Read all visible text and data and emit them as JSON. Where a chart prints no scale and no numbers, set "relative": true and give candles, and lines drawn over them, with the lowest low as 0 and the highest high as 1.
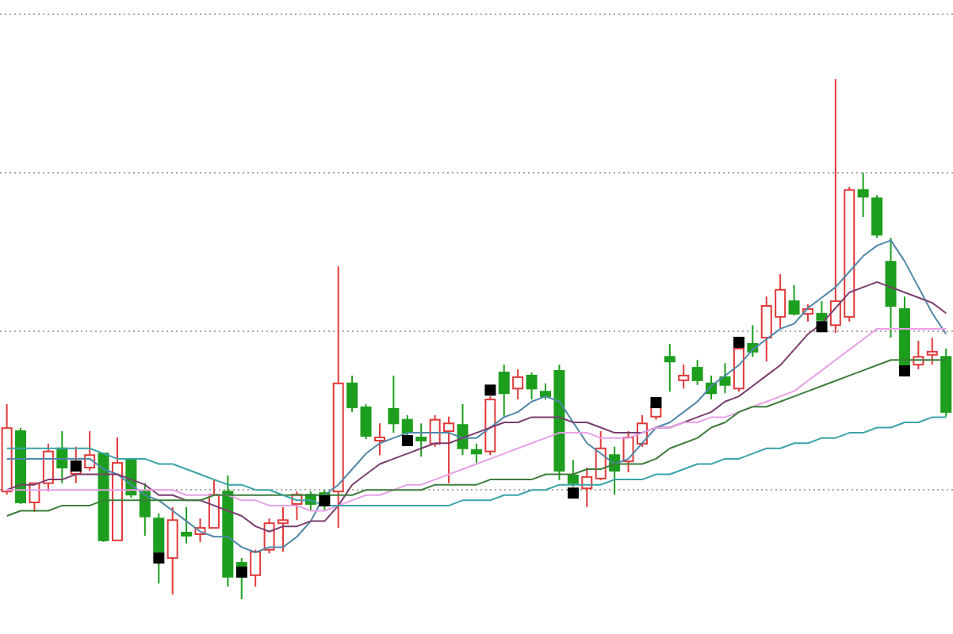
{
  "chart_data": {
    "type": "candlestick",
    "relative": true,
    "grid": "y",
    "categories": [
      null,
      null,
      null,
      null,
      null,
      null,
      null,
      null,
      null,
      null,
      null,
      null,
      null,
      null,
      null,
      null,
      null,
      null,
      null,
      null,
      null,
      null,
      null,
      null,
      null,
      null,
      null,
      null,
      null,
      null,
      null,
      null,
      null,
      null,
      null,
      null,
      null,
      null,
      null,
      null,
      null,
      null,
      null,
      null,
      null,
      null,
      null,
      null,
      null,
      null,
      null,
      null,
      null,
      null,
      null,
      null,
      null,
      null,
      null,
      null,
      null,
      null,
      null,
      null,
      null,
      null,
      null,
      null,
      null
    ],
    "ohlc": [
      [
        0.207,
        0.375,
        0.201,
        0.329
      ],
      [
        0.323,
        0.329,
        0.183,
        0.186
      ],
      [
        0.186,
        0.223,
        0.168,
        0.223
      ],
      [
        0.223,
        0.299,
        0.207,
        0.284
      ],
      [
        0.29,
        0.323,
        0.223,
        0.253
      ],
      [
        0.241,
        0.293,
        0.223,
        0.247
      ],
      [
        0.253,
        0.323,
        0.247,
        0.277
      ],
      [
        0.28,
        0.28,
        0.11,
        0.113
      ],
      [
        0.113,
        0.311,
        0.113,
        0.262
      ],
      [
        0.268,
        0.271,
        0.195,
        0.201
      ],
      [
        0.207,
        0.223,
        0.122,
        0.159
      ],
      [
        0.155,
        0.165,
        0.03,
        0.091
      ],
      [
        0.079,
        0.177,
        0.009,
        0.152
      ],
      [
        0.128,
        0.177,
        0.107,
        0.122
      ],
      [
        0.125,
        0.155,
        0.11,
        0.137
      ],
      [
        0.137,
        0.229,
        0.137,
        0.201
      ],
      [
        0.207,
        0.238,
        0.024,
        0.043
      ],
      [
        0.07,
        0.079,
        0,
        0.064
      ],
      [
        0.046,
        0.095,
        0.024,
        0.091
      ],
      [
        0.095,
        0.155,
        0.088,
        0.146
      ],
      [
        0.146,
        0.177,
        0.091,
        0.152
      ],
      [
        0.183,
        0.207,
        0.152,
        0.201
      ],
      [
        0.201,
        0.207,
        0.171,
        0.183
      ],
      [
        0.204,
        0.21,
        0.171,
        0.198
      ],
      [
        0.207,
        0.64,
        0.137,
        0.415
      ],
      [
        0.415,
        0.43,
        0.36,
        0.369
      ],
      [
        0.369,
        0.375,
        0.308,
        0.314
      ],
      [
        0.305,
        0.338,
        0.277,
        0.311
      ],
      [
        0.366,
        0.43,
        0.32,
        0.338
      ],
      [
        0.345,
        0.354,
        0.314,
        0.32
      ],
      [
        0.311,
        0.338,
        0.274,
        0.305
      ],
      [
        0.299,
        0.354,
        0.293,
        0.345
      ],
      [
        0.323,
        0.351,
        0.223,
        0.338
      ],
      [
        0.335,
        0.375,
        0.277,
        0.29
      ],
      [
        0.287,
        0.299,
        0.262,
        0.28
      ],
      [
        0.284,
        0.39,
        0.277,
        0.384
      ],
      [
        0.436,
        0.451,
        0.351,
        0.396
      ],
      [
        0.405,
        0.442,
        0.384,
        0.427
      ],
      [
        0.43,
        0.436,
        0.384,
        0.405
      ],
      [
        0.399,
        0.415,
        0.384,
        0.39
      ],
      [
        0.439,
        0.451,
        0.229,
        0.247
      ],
      [
        0.238,
        0.268,
        0.216,
        0.223
      ],
      [
        0.213,
        0.253,
        0.177,
        0.235
      ],
      [
        0.232,
        0.323,
        0.229,
        0.29
      ],
      [
        0.277,
        0.293,
        0.201,
        0.247
      ],
      [
        0.265,
        0.323,
        0.244,
        0.311
      ],
      [
        0.299,
        0.354,
        0.293,
        0.338
      ],
      [
        0.351,
        0.369,
        0.345,
        0.369
      ],
      [
        0.466,
        0.491,
        0.399,
        0.457
      ],
      [
        0.421,
        0.451,
        0.405,
        0.43
      ],
      [
        0.445,
        0.46,
        0.412,
        0.421
      ],
      [
        0.415,
        0.43,
        0.384,
        0.396
      ],
      [
        0.427,
        0.454,
        0.396,
        0.412
      ],
      [
        0.405,
        0.482,
        0.399,
        0.482
      ],
      [
        0.491,
        0.527,
        0.466,
        0.476
      ],
      [
        0.503,
        0.582,
        0.457,
        0.564
      ],
      [
        0.543,
        0.625,
        0.521,
        0.595
      ],
      [
        0.573,
        0.604,
        0.546,
        0.549
      ],
      [
        0.549,
        0.567,
        0.534,
        0.558
      ],
      [
        0.549,
        0.573,
        0.534,
        0.537
      ],
      [
        0.527,
        1,
        0.512,
        0.573
      ],
      [
        0.543,
        0.793,
        0.534,
        0.787
      ],
      [
        0.787,
        0.82,
        0.735,
        0.774
      ],
      [
        0.771,
        0.777,
        0.695,
        0.701
      ],
      [
        0.649,
        0.695,
        0.503,
        0.564
      ],
      [
        0.558,
        0.582,
        0.445,
        0.451
      ],
      [
        0.451,
        0.497,
        0.442,
        0.466
      ],
      [
        0.47,
        0.503,
        0.451,
        0.476
      ],
      [
        0.466,
        0.482,
        0.351,
        0.36
      ]
    ],
    "colors": [
      "#e0393a",
      "#1e9e1e",
      "#e0393a",
      "#e0393a",
      "#1e9e1e",
      "#e0393a",
      "#e0393a",
      "#1e9e1e",
      "#e0393a",
      "#1e9e1e",
      "#1e9e1e",
      "#1e9e1e",
      "#e0393a",
      "#1e9e1e",
      "#e0393a",
      "#e0393a",
      "#1e9e1e",
      "#1e9e1e",
      "#e0393a",
      "#e0393a",
      "#e0393a",
      "#e0393a",
      "#1e9e1e",
      "#1e9e1e",
      "#e0393a",
      "#1e9e1e",
      "#1e9e1e",
      "#e0393a",
      "#1e9e1e",
      "#1e9e1e",
      "#1e9e1e",
      "#e0393a",
      "#e0393a",
      "#1e9e1e",
      "#1e9e1e",
      "#e0393a",
      "#1e9e1e",
      "#e0393a",
      "#1e9e1e",
      "#1e9e1e",
      "#1e9e1e",
      "#1e9e1e",
      "#e0393a",
      "#e0393a",
      "#1e9e1e",
      "#e0393a",
      "#e0393a",
      "#e0393a",
      "#1e9e1e",
      "#e0393a",
      "#1e9e1e",
      "#1e9e1e",
      "#1e9e1e",
      "#e0393a",
      "#1e9e1e",
      "#e0393a",
      "#e0393a",
      "#1e9e1e",
      "#e0393a",
      "#1e9e1e",
      "#e0393a",
      "#e0393a",
      "#1e9e1e",
      "#1e9e1e",
      "#1e9e1e",
      "#1e9e1e",
      "#e0393a",
      "#e0393a",
      "#1e9e1e"
    ],
    "series": [
      {
        "type": "line",
        "color": "#4f87a8",
        "values": [
          0.27,
          0.27,
          0.27,
          0.27,
          0.27,
          0.27,
          0.27,
          0.25,
          0.24,
          0.22,
          0.2,
          0.19,
          0.17,
          0.15,
          0.13,
          0.12,
          0.12,
          0.1,
          0.09,
          0.1,
          0.1,
          0.12,
          0.15,
          0.2,
          0.22,
          0.25,
          0.28,
          0.3,
          0.31,
          0.32,
          0.32,
          0.32,
          0.32,
          0.31,
          0.31,
          0.33,
          0.35,
          0.36,
          0.38,
          0.39,
          0.38,
          0.34,
          0.3,
          0.28,
          0.26,
          0.27,
          0.3,
          0.33,
          0.34,
          0.36,
          0.38,
          0.41,
          0.43,
          0.45,
          0.48,
          0.5,
          0.52,
          0.53,
          0.56,
          0.58,
          0.6,
          0.63,
          0.66,
          0.68,
          0.69,
          0.65,
          0.6,
          0.55,
          0.51
        ]
      },
      {
        "type": "line",
        "color": "#7a3d6e",
        "values": [
          0.21,
          0.22,
          0.22,
          0.23,
          0.23,
          0.24,
          0.24,
          0.24,
          0.24,
          0.23,
          0.22,
          0.2,
          0.2,
          0.19,
          0.19,
          0.18,
          0.17,
          0.16,
          0.14,
          0.13,
          0.14,
          0.14,
          0.15,
          0.15,
          0.18,
          0.22,
          0.24,
          0.26,
          0.27,
          0.28,
          0.29,
          0.3,
          0.3,
          0.31,
          0.32,
          0.33,
          0.34,
          0.34,
          0.35,
          0.35,
          0.35,
          0.34,
          0.34,
          0.33,
          0.32,
          0.32,
          0.32,
          0.33,
          0.33,
          0.34,
          0.35,
          0.36,
          0.38,
          0.39,
          0.41,
          0.43,
          0.45,
          0.48,
          0.51,
          0.53,
          0.56,
          0.59,
          0.6,
          0.61,
          0.6,
          0.59,
          0.58,
          0.57,
          0.55
        ]
      },
      {
        "type": "line",
        "color": "#e8a0e8",
        "values": [
          0.21,
          0.21,
          0.21,
          0.21,
          0.21,
          0.21,
          0.21,
          0.21,
          0.21,
          0.21,
          0.21,
          0.21,
          0.21,
          0.2,
          0.2,
          0.2,
          0.2,
          0.19,
          0.19,
          0.18,
          0.18,
          0.18,
          0.17,
          0.17,
          0.18,
          0.19,
          0.2,
          0.2,
          0.21,
          0.22,
          0.22,
          0.23,
          0.24,
          0.25,
          0.26,
          0.27,
          0.28,
          0.29,
          0.3,
          0.31,
          0.32,
          0.32,
          0.32,
          0.31,
          0.31,
          0.31,
          0.32,
          0.33,
          0.33,
          0.34,
          0.34,
          0.35,
          0.35,
          0.36,
          0.37,
          0.38,
          0.39,
          0.4,
          0.42,
          0.44,
          0.46,
          0.48,
          0.5,
          0.52,
          0.52,
          0.52,
          0.52,
          0.52,
          0.52
        ]
      },
      {
        "type": "line",
        "color": "#3c7d3c",
        "values": [
          0.16,
          0.17,
          0.17,
          0.17,
          0.18,
          0.18,
          0.18,
          0.19,
          0.19,
          0.19,
          0.19,
          0.19,
          0.19,
          0.19,
          0.19,
          0.2,
          0.2,
          0.2,
          0.2,
          0.2,
          0.2,
          0.2,
          0.2,
          0.2,
          0.2,
          0.2,
          0.21,
          0.21,
          0.21,
          0.21,
          0.21,
          0.22,
          0.22,
          0.22,
          0.22,
          0.23,
          0.23,
          0.23,
          0.23,
          0.24,
          0.24,
          0.24,
          0.25,
          0.25,
          0.26,
          0.26,
          0.26,
          0.27,
          0.29,
          0.3,
          0.31,
          0.33,
          0.34,
          0.36,
          0.37,
          0.37,
          0.38,
          0.39,
          0.4,
          0.41,
          0.42,
          0.43,
          0.44,
          0.45,
          0.46,
          0.46,
          0.46,
          0.46,
          0.46
        ]
      },
      {
        "type": "line",
        "color": "#3aa3a8",
        "values": [
          0.29,
          0.29,
          0.29,
          0.29,
          0.29,
          0.29,
          0.29,
          0.28,
          0.27,
          0.27,
          0.27,
          0.26,
          0.26,
          0.25,
          0.24,
          0.23,
          0.22,
          0.22,
          0.21,
          0.21,
          0.2,
          0.19,
          0.19,
          0.18,
          0.18,
          0.18,
          0.18,
          0.18,
          0.18,
          0.18,
          0.18,
          0.18,
          0.18,
          0.19,
          0.19,
          0.19,
          0.2,
          0.2,
          0.21,
          0.21,
          0.22,
          0.22,
          0.22,
          0.22,
          0.23,
          0.23,
          0.23,
          0.24,
          0.24,
          0.25,
          0.26,
          0.26,
          0.27,
          0.27,
          0.28,
          0.29,
          0.29,
          0.3,
          0.3,
          0.31,
          0.31,
          0.32,
          0.32,
          0.33,
          0.33,
          0.34,
          0.34,
          0.35,
          0.35
        ]
      },
      {
        "type": "scatter",
        "color": "#000000",
        "marker": "square",
        "values": [
          null,
          null,
          null,
          null,
          null,
          0.256,
          null,
          null,
          null,
          null,
          null,
          0.079,
          null,
          null,
          null,
          null,
          null,
          0.052,
          null,
          null,
          null,
          null,
          null,
          0.189,
          null,
          null,
          null,
          null,
          null,
          0.305,
          null,
          null,
          null,
          null,
          null,
          0.402,
          null,
          null,
          null,
          null,
          null,
          0.204,
          null,
          null,
          null,
          null,
          null,
          0.378,
          null,
          null,
          null,
          null,
          null,
          0.494,
          null,
          null,
          null,
          null,
          null,
          0.524,
          null,
          null,
          null,
          null,
          null,
          0.439,
          null,
          null,
          null
        ]
      }
    ]
  }
}
